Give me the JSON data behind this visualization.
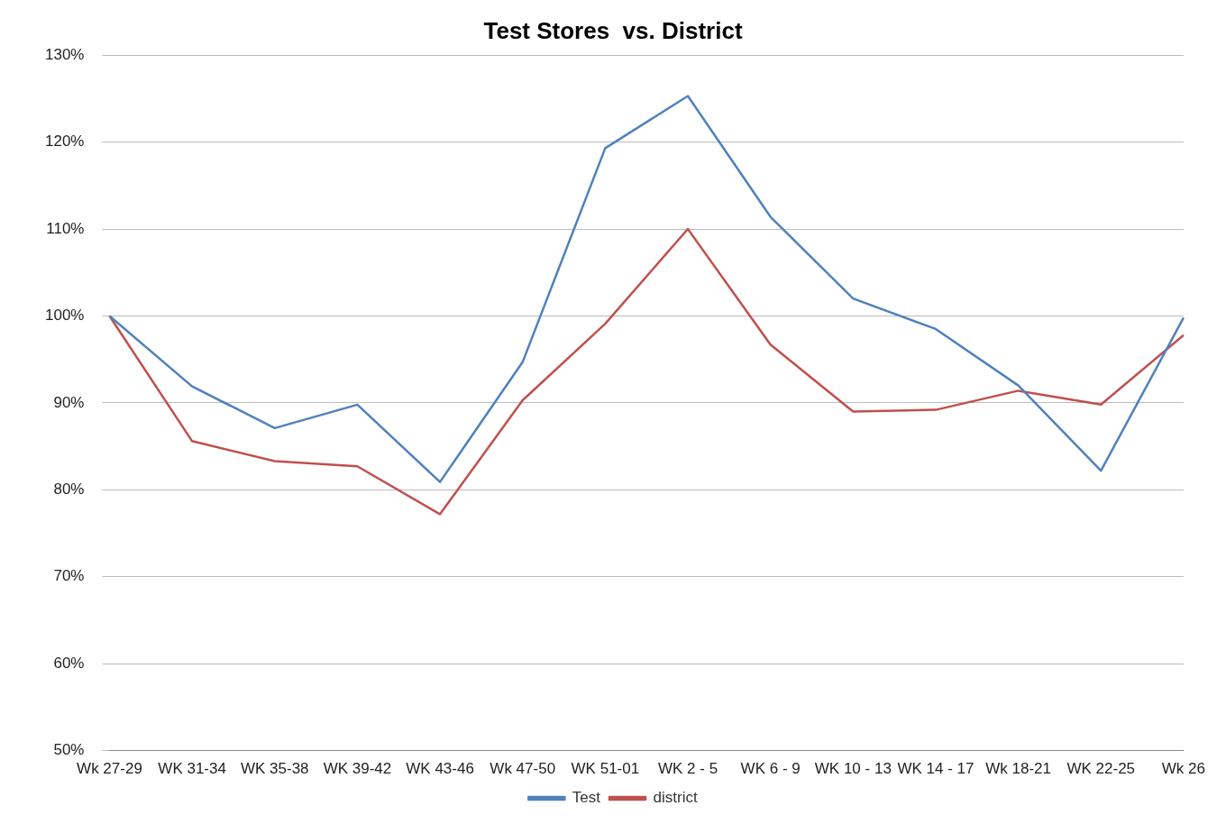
{
  "chart_data": {
    "type": "line",
    "title": "Test Stores  vs. District",
    "categories": [
      "Wk 27-29",
      "WK 31-34",
      "WK 35-38",
      "WK 39-42",
      "WK 43-46",
      "Wk 47-50",
      "WK 51-01",
      "WK 2 - 5",
      "WK 6 - 9",
      "WK 10 - 13",
      "WK 14 - 17",
      "Wk 18-21",
      "WK 22-25",
      "Wk 26"
    ],
    "series": [
      {
        "name": "Test",
        "color": "#4f81bd",
        "values": [
          100,
          91.9,
          87.1,
          89.8,
          80.9,
          94.7,
          119.3,
          125.3,
          111.4,
          102,
          98.5,
          92,
          82.2,
          99.8
        ]
      },
      {
        "name": "district",
        "color": "#c0504d",
        "values": [
          100,
          85.6,
          83.3,
          82.7,
          77.2,
          90.3,
          99.1,
          110,
          96.7,
          89,
          89.2,
          91.4,
          89.8,
          97.8
        ]
      }
    ],
    "ylim": [
      50,
      130
    ],
    "yticks": [
      {
        "value": 50,
        "label": "50%"
      },
      {
        "value": 60,
        "label": "60%"
      },
      {
        "value": 70,
        "label": "70%"
      },
      {
        "value": 80,
        "label": "80%"
      },
      {
        "value": 90,
        "label": "90%"
      },
      {
        "value": 100,
        "label": "100%"
      },
      {
        "value": 110,
        "label": "110%"
      },
      {
        "value": 120,
        "label": "120%"
      },
      {
        "value": 130,
        "label": "130%"
      }
    ],
    "grid": "y",
    "legend": "bottom",
    "marker": "none",
    "line_style": "solid"
  }
}
